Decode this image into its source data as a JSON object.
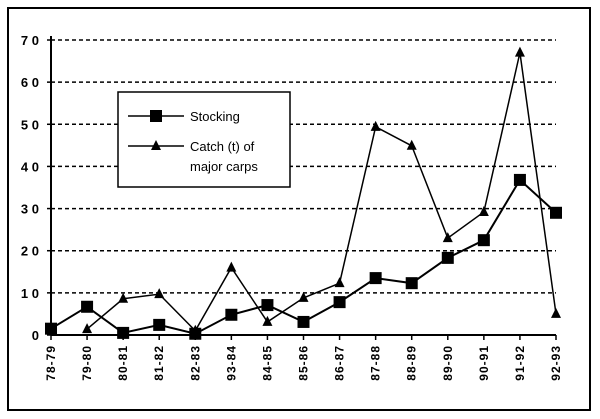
{
  "chart_data": {
    "type": "line",
    "title": "",
    "xlabel": "",
    "ylabel": "",
    "ylim": [
      0,
      70
    ],
    "yticks": [
      0,
      10,
      20,
      30,
      40,
      50,
      60,
      70
    ],
    "ytick_labels": [
      "0",
      "1 0",
      "2 0",
      "3 0",
      "4 0",
      "5 0",
      "6 0",
      "7 0"
    ],
    "grid": "horizontal dashed",
    "legend_position": "top-left",
    "categories": [
      "78-79",
      "79-80",
      "80-81",
      "81-82",
      "82-83",
      "93-84",
      "84-85",
      "85-86",
      "86-87",
      "87-88",
      "88-89",
      "89-90",
      "90-91",
      "91-92",
      "92-93"
    ],
    "series": [
      {
        "name": "Stocking",
        "marker": "square",
        "values": [
          1.5,
          6.7,
          0.5,
          2.4,
          0.3,
          4.8,
          7.1,
          3.1,
          7.8,
          13.5,
          12.3,
          18.3,
          22.5,
          36.8,
          29.0
        ]
      },
      {
        "name": "Catch (t) of major carps",
        "marker": "triangle",
        "values": [
          null,
          1.4,
          8.6,
          9.7,
          1.0,
          16.0,
          3.1,
          8.8,
          12.3,
          49.4,
          44.9,
          23.0,
          29.2,
          67.0,
          5.0
        ]
      }
    ],
    "legend_lines": [
      [
        "Stocking"
      ],
      [
        "Catch  (t)  of",
        "major  carps"
      ]
    ]
  }
}
